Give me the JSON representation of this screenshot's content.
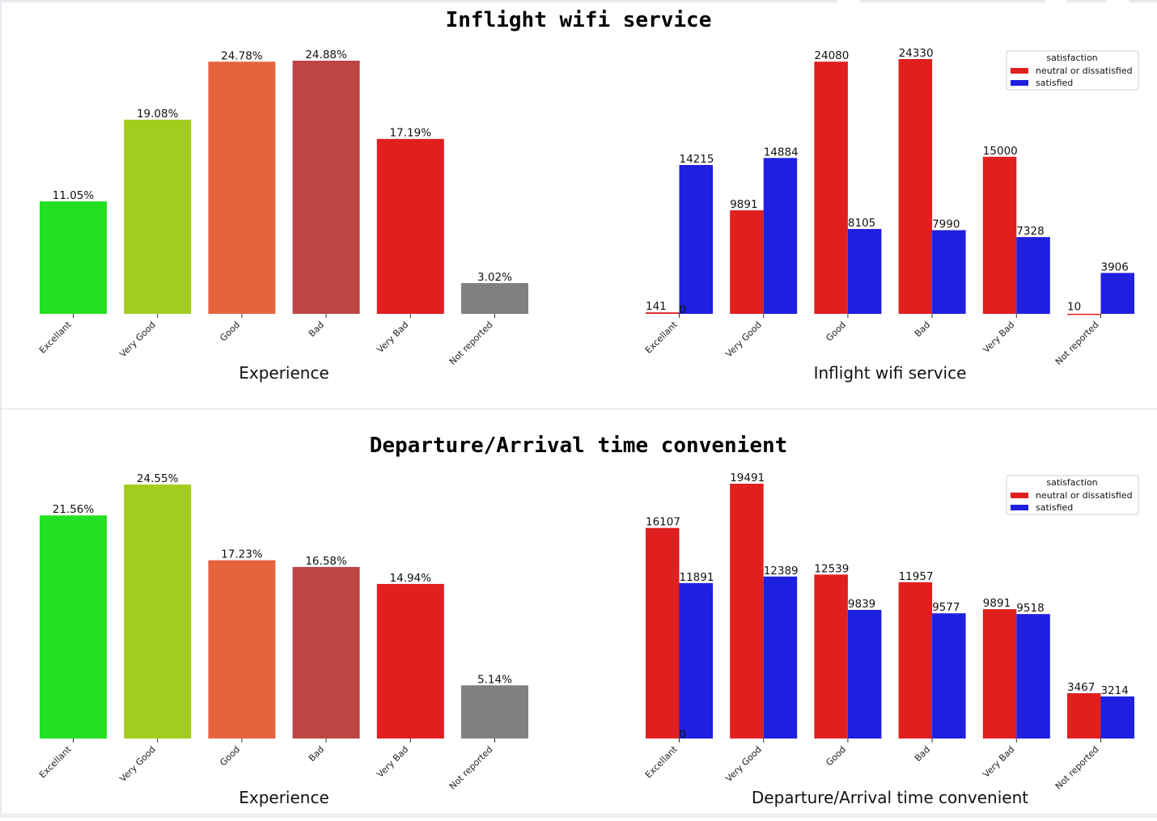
{
  "chart_data": [
    {
      "title": "Inflight wifi service",
      "subplots": [
        {
          "type": "bar",
          "categories": [
            "Excellant",
            "Very Good",
            "Good",
            "Bad",
            "Very Bad",
            "Not reported"
          ],
          "values": [
            11.05,
            19.08,
            24.78,
            24.88,
            17.19,
            3.02
          ],
          "value_labels": [
            "11.05%",
            "19.08%",
            "24.78%",
            "24.88%",
            "17.19%",
            "3.02%"
          ],
          "colors": [
            "#22e022",
            "#a3cd1e",
            "#e5643e",
            "#bf4444",
            "#e01f1f",
            "#808080"
          ],
          "xlabel": "Experience",
          "ylabel": "",
          "ylim": [
            0,
            26
          ],
          "grid": false
        },
        {
          "type": "bar",
          "categories": [
            "Excellant",
            "Very Good",
            "Good",
            "Bad",
            "Very Bad",
            "Not reported"
          ],
          "series": [
            {
              "name": "neutral or dissatisfied",
              "color": "#e01f1f",
              "values": [
                141,
                9891,
                24080,
                24330,
                15000,
                10
              ],
              "labels": [
                "141",
                "9891",
                "24080",
                "24330",
                "15000",
                "10"
              ]
            },
            {
              "name": "satisfied",
              "color": "#1f1fe0",
              "values": [
                0,
                14884,
                8105,
                7990,
                7328,
                3906
              ],
              "labels": [
                "0",
                "14884",
                "8105",
                "7990",
                "7328",
                "3906"
              ]
            },
            {
              "name": "",
              "color": "#1f1fe0",
              "values": [
                14215,
                0,
                0,
                0,
                0,
                0
              ],
              "labels": [
                "14215",
                "",
                "",
                "",
                "",
                ""
              ]
            }
          ],
          "legend": {
            "title": "satisfaction",
            "placement": "top-right"
          },
          "xlabel": "Inflight wifi service",
          "ylabel": "",
          "ylim": [
            0,
            25500
          ],
          "grid": false
        }
      ]
    },
    {
      "title": "Departure/Arrival time convenient",
      "subplots": [
        {
          "type": "bar",
          "categories": [
            "Excellant",
            "Very Good",
            "Good",
            "Bad",
            "Very Bad",
            "Not reported"
          ],
          "values": [
            21.56,
            24.55,
            17.23,
            16.58,
            14.94,
            5.14
          ],
          "value_labels": [
            "21.56%",
            "24.55%",
            "17.23%",
            "16.58%",
            "14.94%",
            "5.14%"
          ],
          "colors": [
            "#22e022",
            "#a3cd1e",
            "#e5643e",
            "#bf4444",
            "#e01f1f",
            "#808080"
          ],
          "xlabel": "Experience",
          "ylabel": "",
          "ylim": [
            0,
            26
          ],
          "grid": false
        },
        {
          "type": "bar",
          "categories": [
            "Excellant",
            "Very Good",
            "Good",
            "Bad",
            "Very Bad",
            "Not reported"
          ],
          "series": [
            {
              "name": "neutral or dissatisfied",
              "color": "#e01f1f",
              "values": [
                16107,
                19491,
                12539,
                11957,
                9891,
                3467
              ],
              "labels": [
                "16107",
                "19491",
                "12539",
                "11957",
                "9891",
                "3467"
              ]
            },
            {
              "name": "satisfied",
              "color": "#1f1fe0",
              "values": [
                11891,
                12389,
                9839,
                9577,
                9518,
                3214
              ],
              "labels": [
                "11891",
                "12389",
                "9839",
                "9577",
                "9518",
                "3214"
              ]
            }
          ],
          "extra_labels": [
            "0"
          ],
          "legend": {
            "title": "satisfaction",
            "placement": "top-right"
          },
          "xlabel": "Departure/Arrival time convenient",
          "ylabel": "",
          "ylim": [
            0,
            20400
          ],
          "grid": false
        }
      ]
    }
  ]
}
